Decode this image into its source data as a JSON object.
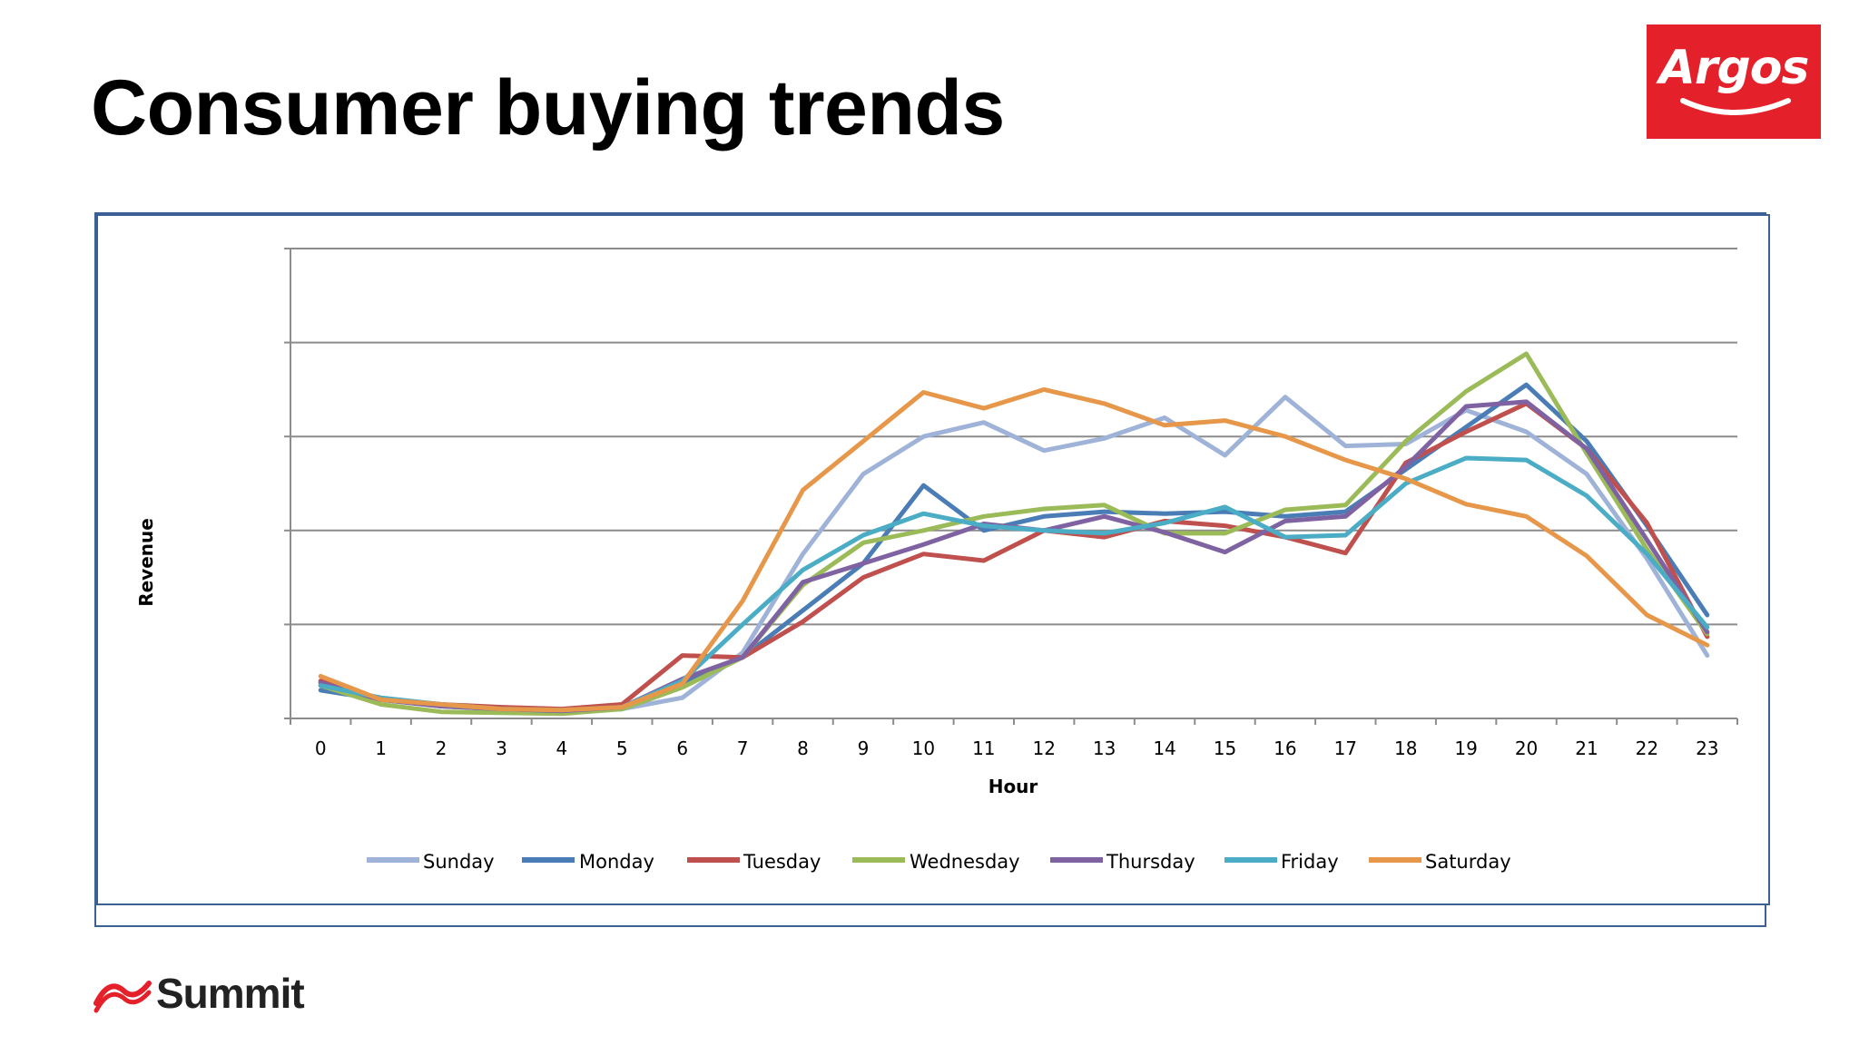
{
  "slide": {
    "title": "Consumer buying trends"
  },
  "brand_logo": {
    "text": "Argos",
    "color": "#e4202a"
  },
  "footer_logo": {
    "text": "Summit",
    "accent_color": "#e4202a"
  },
  "chart_data": {
    "type": "line",
    "title": "",
    "xlabel": "Hour",
    "ylabel": "Revenue",
    "x": [
      0,
      1,
      2,
      3,
      4,
      5,
      6,
      7,
      8,
      9,
      10,
      11,
      12,
      13,
      14,
      15,
      16,
      17,
      18,
      19,
      20,
      21,
      22,
      23
    ],
    "ylim": [
      0,
      5
    ],
    "y_ticks_labeled": false,
    "grid": true,
    "legend_position": "bottom",
    "series": [
      {
        "name": "Sunday",
        "color": "#9fb3d8",
        "values": [
          0.35,
          0.2,
          0.15,
          0.1,
          0.08,
          0.1,
          0.22,
          0.7,
          1.75,
          2.6,
          3.0,
          3.15,
          2.85,
          2.98,
          3.2,
          2.8,
          3.42,
          2.9,
          2.92,
          3.28,
          3.05,
          2.6,
          1.7,
          0.67
        ]
      },
      {
        "name": "Monday",
        "color": "#4a7db5",
        "values": [
          0.3,
          0.2,
          0.13,
          0.1,
          0.08,
          0.1,
          0.38,
          0.65,
          1.15,
          1.65,
          2.48,
          2.0,
          2.15,
          2.2,
          2.18,
          2.2,
          2.15,
          2.2,
          2.65,
          3.1,
          3.55,
          2.95,
          2.05,
          1.1
        ]
      },
      {
        "name": "Tuesday",
        "color": "#c0504d",
        "values": [
          0.4,
          0.2,
          0.15,
          0.12,
          0.1,
          0.15,
          0.67,
          0.65,
          1.03,
          1.5,
          1.75,
          1.68,
          2.0,
          1.93,
          2.1,
          2.05,
          1.93,
          1.76,
          2.72,
          3.05,
          3.35,
          2.87,
          2.08,
          0.87
        ]
      },
      {
        "name": "Wednesday",
        "color": "#9bbb59",
        "values": [
          0.35,
          0.15,
          0.07,
          0.06,
          0.05,
          0.1,
          0.33,
          0.65,
          1.42,
          1.87,
          2.0,
          2.15,
          2.23,
          2.27,
          1.97,
          1.97,
          2.22,
          2.27,
          2.95,
          3.48,
          3.88,
          2.82,
          1.8,
          0.9
        ]
      },
      {
        "name": "Thursday",
        "color": "#7f62a1",
        "values": [
          0.38,
          0.2,
          0.13,
          0.1,
          0.08,
          0.12,
          0.42,
          0.65,
          1.45,
          1.65,
          1.85,
          2.07,
          2.0,
          2.15,
          1.98,
          1.77,
          2.1,
          2.15,
          2.68,
          3.32,
          3.37,
          2.87,
          1.9,
          0.92
        ]
      },
      {
        "name": "Friday",
        "color": "#4bacc6",
        "values": [
          0.35,
          0.22,
          0.15,
          0.1,
          0.09,
          0.12,
          0.4,
          1.0,
          1.58,
          1.95,
          2.18,
          2.05,
          2.0,
          1.97,
          2.08,
          2.25,
          1.93,
          1.95,
          2.5,
          2.77,
          2.75,
          2.37,
          1.75,
          0.97
        ]
      },
      {
        "name": "Saturday",
        "color": "#e7974a",
        "values": [
          0.45,
          0.2,
          0.15,
          0.1,
          0.09,
          0.12,
          0.37,
          1.25,
          2.43,
          2.95,
          3.47,
          3.3,
          3.5,
          3.35,
          3.12,
          3.17,
          3.0,
          2.75,
          2.55,
          2.28,
          2.15,
          1.73,
          1.1,
          0.78
        ]
      }
    ]
  }
}
